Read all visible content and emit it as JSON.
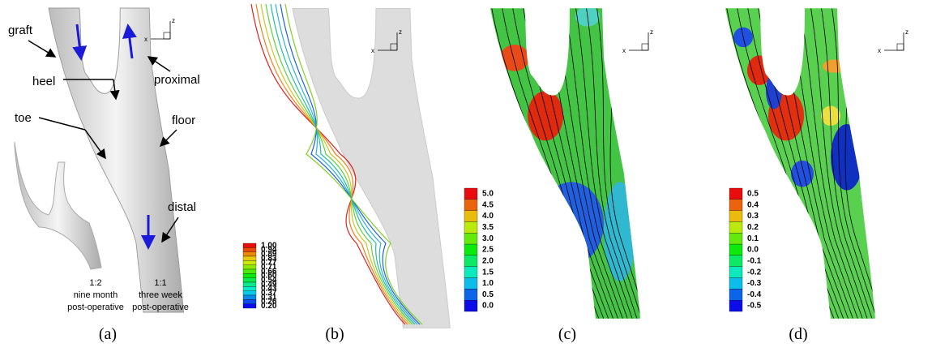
{
  "panel_a": {
    "label": "(a)",
    "annotations": {
      "graft": "graft",
      "heel": "heel",
      "toe": "toe",
      "floor": "floor",
      "proximal": "proximal",
      "distal": "distal"
    },
    "caption_left": [
      "1:2",
      "nine month",
      "post-operative"
    ],
    "caption_right": [
      "1:1",
      "three week",
      "post-operative"
    ],
    "axes": [
      "z",
      "x"
    ]
  },
  "panel_b": {
    "label": "(b)",
    "axes": [
      "z",
      "x"
    ],
    "colorbar": [
      "1.00",
      "0.94",
      "0.89",
      "0.83",
      "0.77",
      "0.71",
      "0.66",
      "0.60",
      "0.54",
      "0.49",
      "0.43",
      "0.37",
      "0.31",
      "0.26",
      "0.20"
    ]
  },
  "panel_c": {
    "label": "(c)",
    "axes": [
      "z",
      "x"
    ],
    "colorbar": [
      "5.0",
      "4.5",
      "4.0",
      "3.5",
      "3.0",
      "2.5",
      "2.0",
      "1.5",
      "1.0",
      "0.5",
      "0.0"
    ]
  },
  "panel_d": {
    "label": "(d)",
    "axes": [
      "z",
      "x"
    ],
    "colorbar": [
      "0.5",
      "0.4",
      "0.3",
      "0.2",
      "0.1",
      "0.0",
      "-0.1",
      "-0.2",
      "-0.3",
      "-0.4",
      "-0.5"
    ]
  }
}
